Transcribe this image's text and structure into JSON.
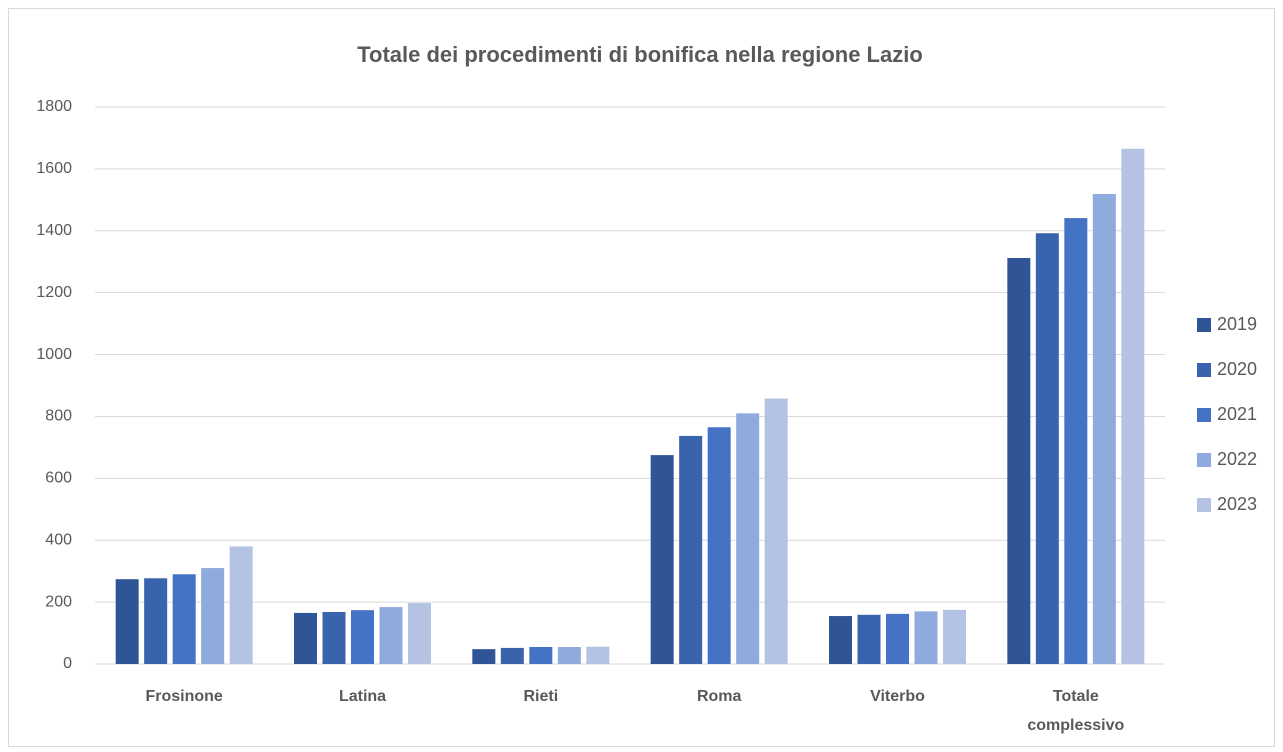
{
  "chart_data": {
    "type": "bar",
    "title": "Totale dei procedimenti di bonifica nella regione Lazio",
    "categories": [
      "Frosinone",
      "Latina",
      "Rieti",
      "Roma",
      "Viterbo",
      "Totale complessivo"
    ],
    "series": [
      {
        "name": "2019",
        "color": "#2f5597",
        "values": [
          274,
          165,
          48,
          675,
          155,
          1312
        ]
      },
      {
        "name": "2020",
        "color": "#3a63ad",
        "values": [
          277,
          168,
          52,
          737,
          159,
          1392
        ]
      },
      {
        "name": "2021",
        "color": "#4472c4",
        "values": [
          290,
          174,
          55,
          765,
          162,
          1441
        ]
      },
      {
        "name": "2022",
        "color": "#8faadc",
        "values": [
          310,
          184,
          55,
          810,
          170,
          1519
        ]
      },
      {
        "name": "2023",
        "color": "#b4c3e3",
        "values": [
          380,
          197,
          56,
          858,
          175,
          1665
        ]
      }
    ],
    "ylim": [
      0,
      1800
    ],
    "yticks": [
      0,
      200,
      400,
      600,
      800,
      1000,
      1200,
      1400,
      1600,
      1800
    ],
    "grid": true,
    "legend": "right"
  }
}
